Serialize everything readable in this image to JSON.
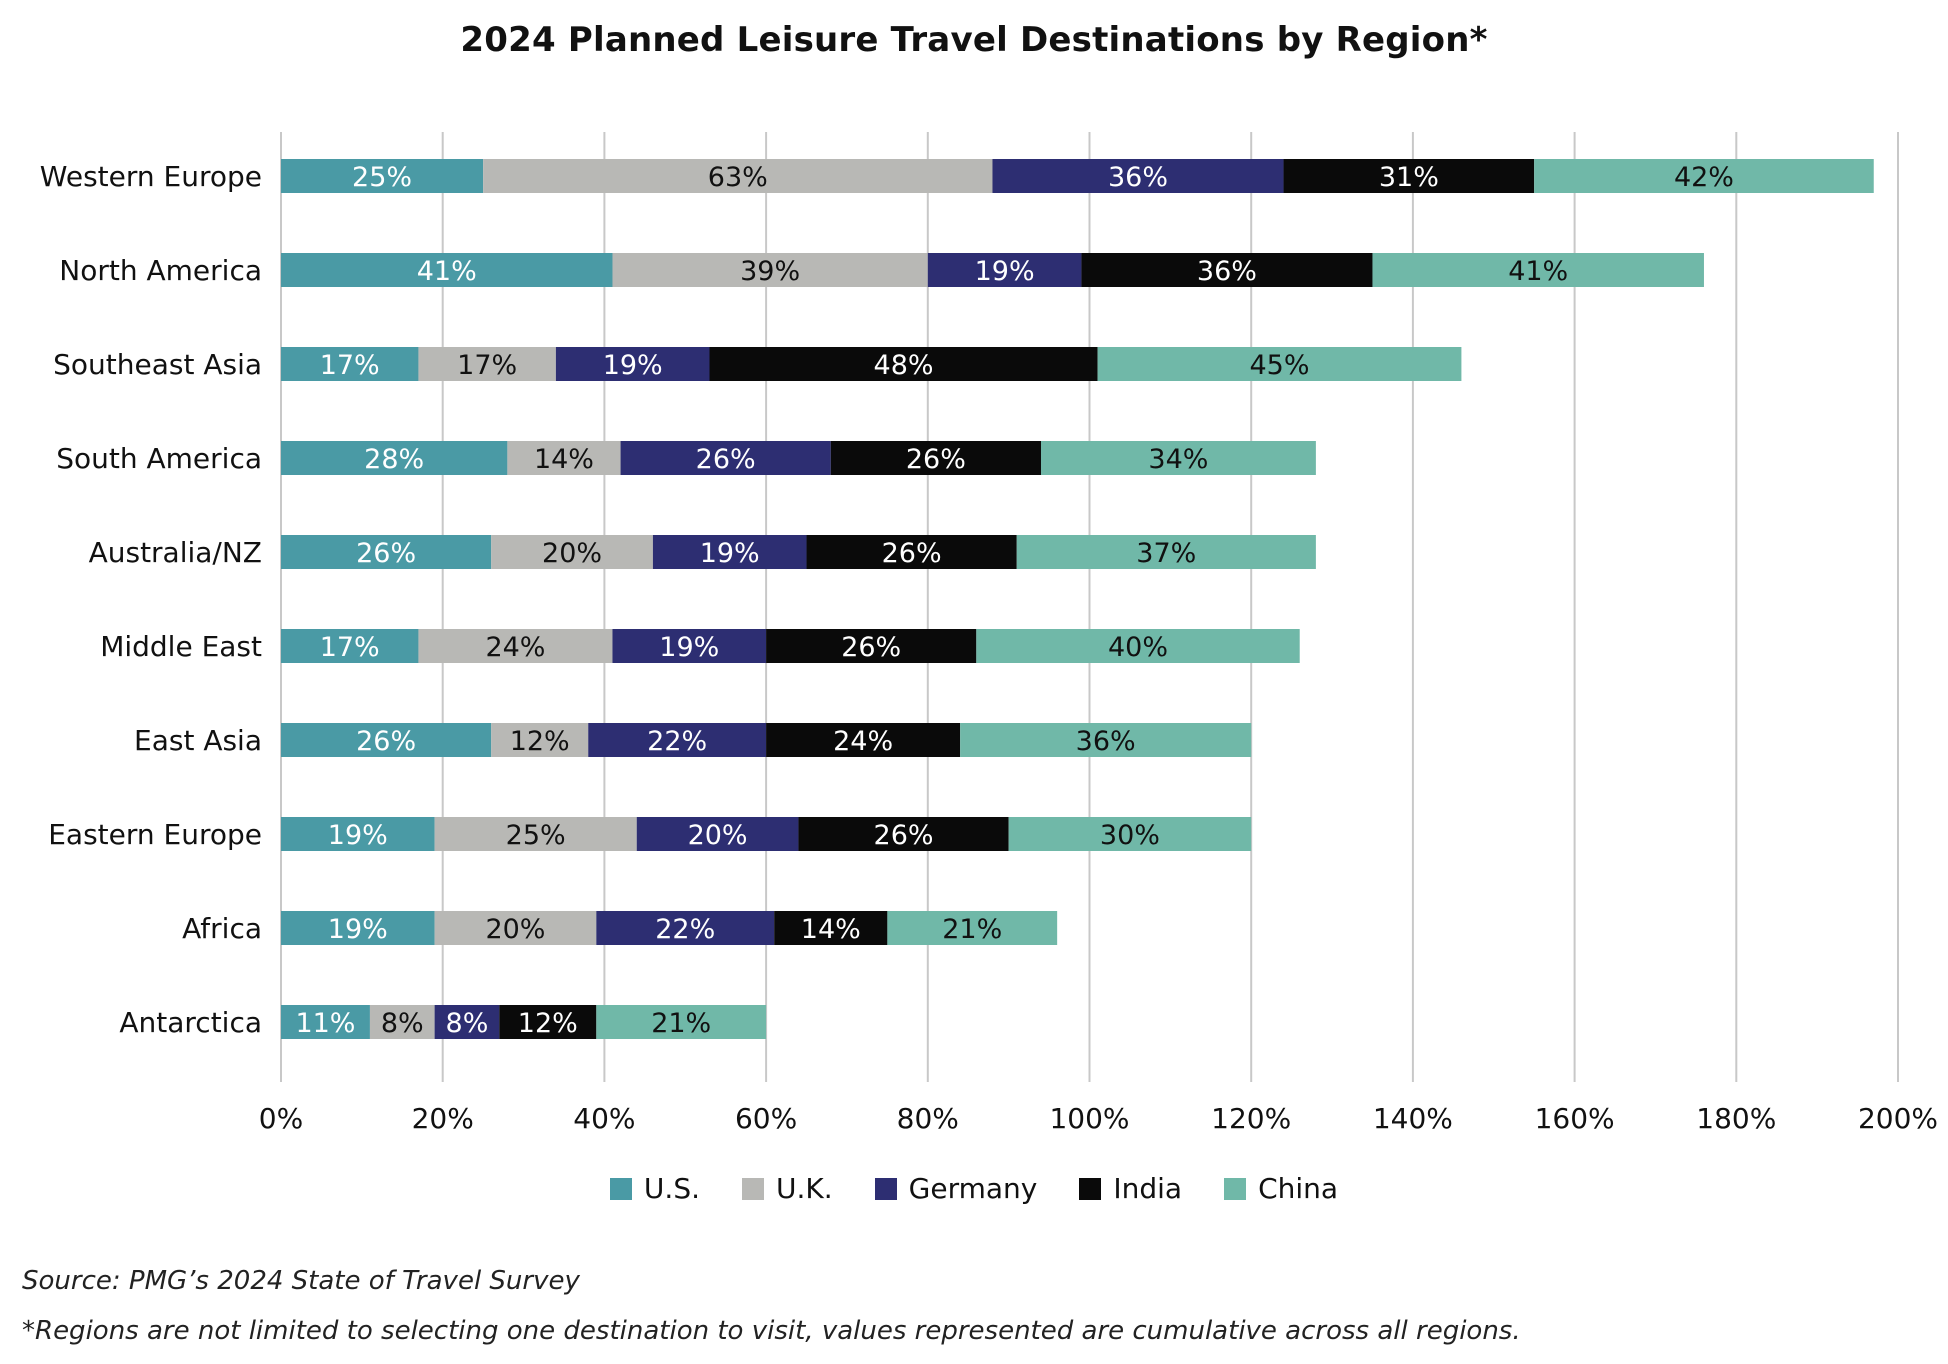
{
  "title": "2024 Planned Leisure Travel Destinations by Region*",
  "source_note": "Source: PMG’s 2024 State of Travel Survey",
  "cumulative_note": "*Regions are not limited to selecting one destination to visit, values represented are cumulative across all regions.",
  "chart_data": {
    "type": "bar",
    "orientation": "horizontal",
    "stacked": true,
    "title": "2024 Planned Leisure Travel Destinations by Region*",
    "xlabel": "",
    "ylabel": "",
    "xlim": [
      0,
      200
    ],
    "grid": true,
    "legend_position": "bottom",
    "categories": [
      "Western Europe",
      "North America",
      "Southeast Asia",
      "South America",
      "Australia/NZ",
      "Middle East",
      "East Asia",
      "Eastern Europe",
      "Africa",
      "Antarctica"
    ],
    "x_ticks": [
      "0%",
      "20%",
      "40%",
      "60%",
      "80%",
      "100%",
      "120%",
      "140%",
      "160%",
      "180%",
      "200%"
    ],
    "series": [
      {
        "name": "U.S.",
        "color": "#4a9aa5",
        "label_color": "#ffffff",
        "values": [
          25,
          41,
          17,
          28,
          26,
          17,
          26,
          19,
          19,
          11
        ]
      },
      {
        "name": "U.K.",
        "color": "#b8b8b5",
        "label_color": "#111111",
        "values": [
          63,
          39,
          17,
          14,
          20,
          24,
          12,
          25,
          20,
          8
        ]
      },
      {
        "name": "Germany",
        "color": "#2d2e72",
        "label_color": "#ffffff",
        "values": [
          36,
          19,
          19,
          26,
          19,
          19,
          22,
          20,
          22,
          8
        ]
      },
      {
        "name": "India",
        "color": "#0a0a0a",
        "label_color": "#ffffff",
        "values": [
          31,
          36,
          48,
          26,
          26,
          26,
          24,
          26,
          14,
          12
        ]
      },
      {
        "name": "China",
        "color": "#70b8a8",
        "label_color": "#111111",
        "values": [
          42,
          41,
          45,
          34,
          37,
          40,
          36,
          30,
          21,
          21
        ]
      }
    ]
  }
}
